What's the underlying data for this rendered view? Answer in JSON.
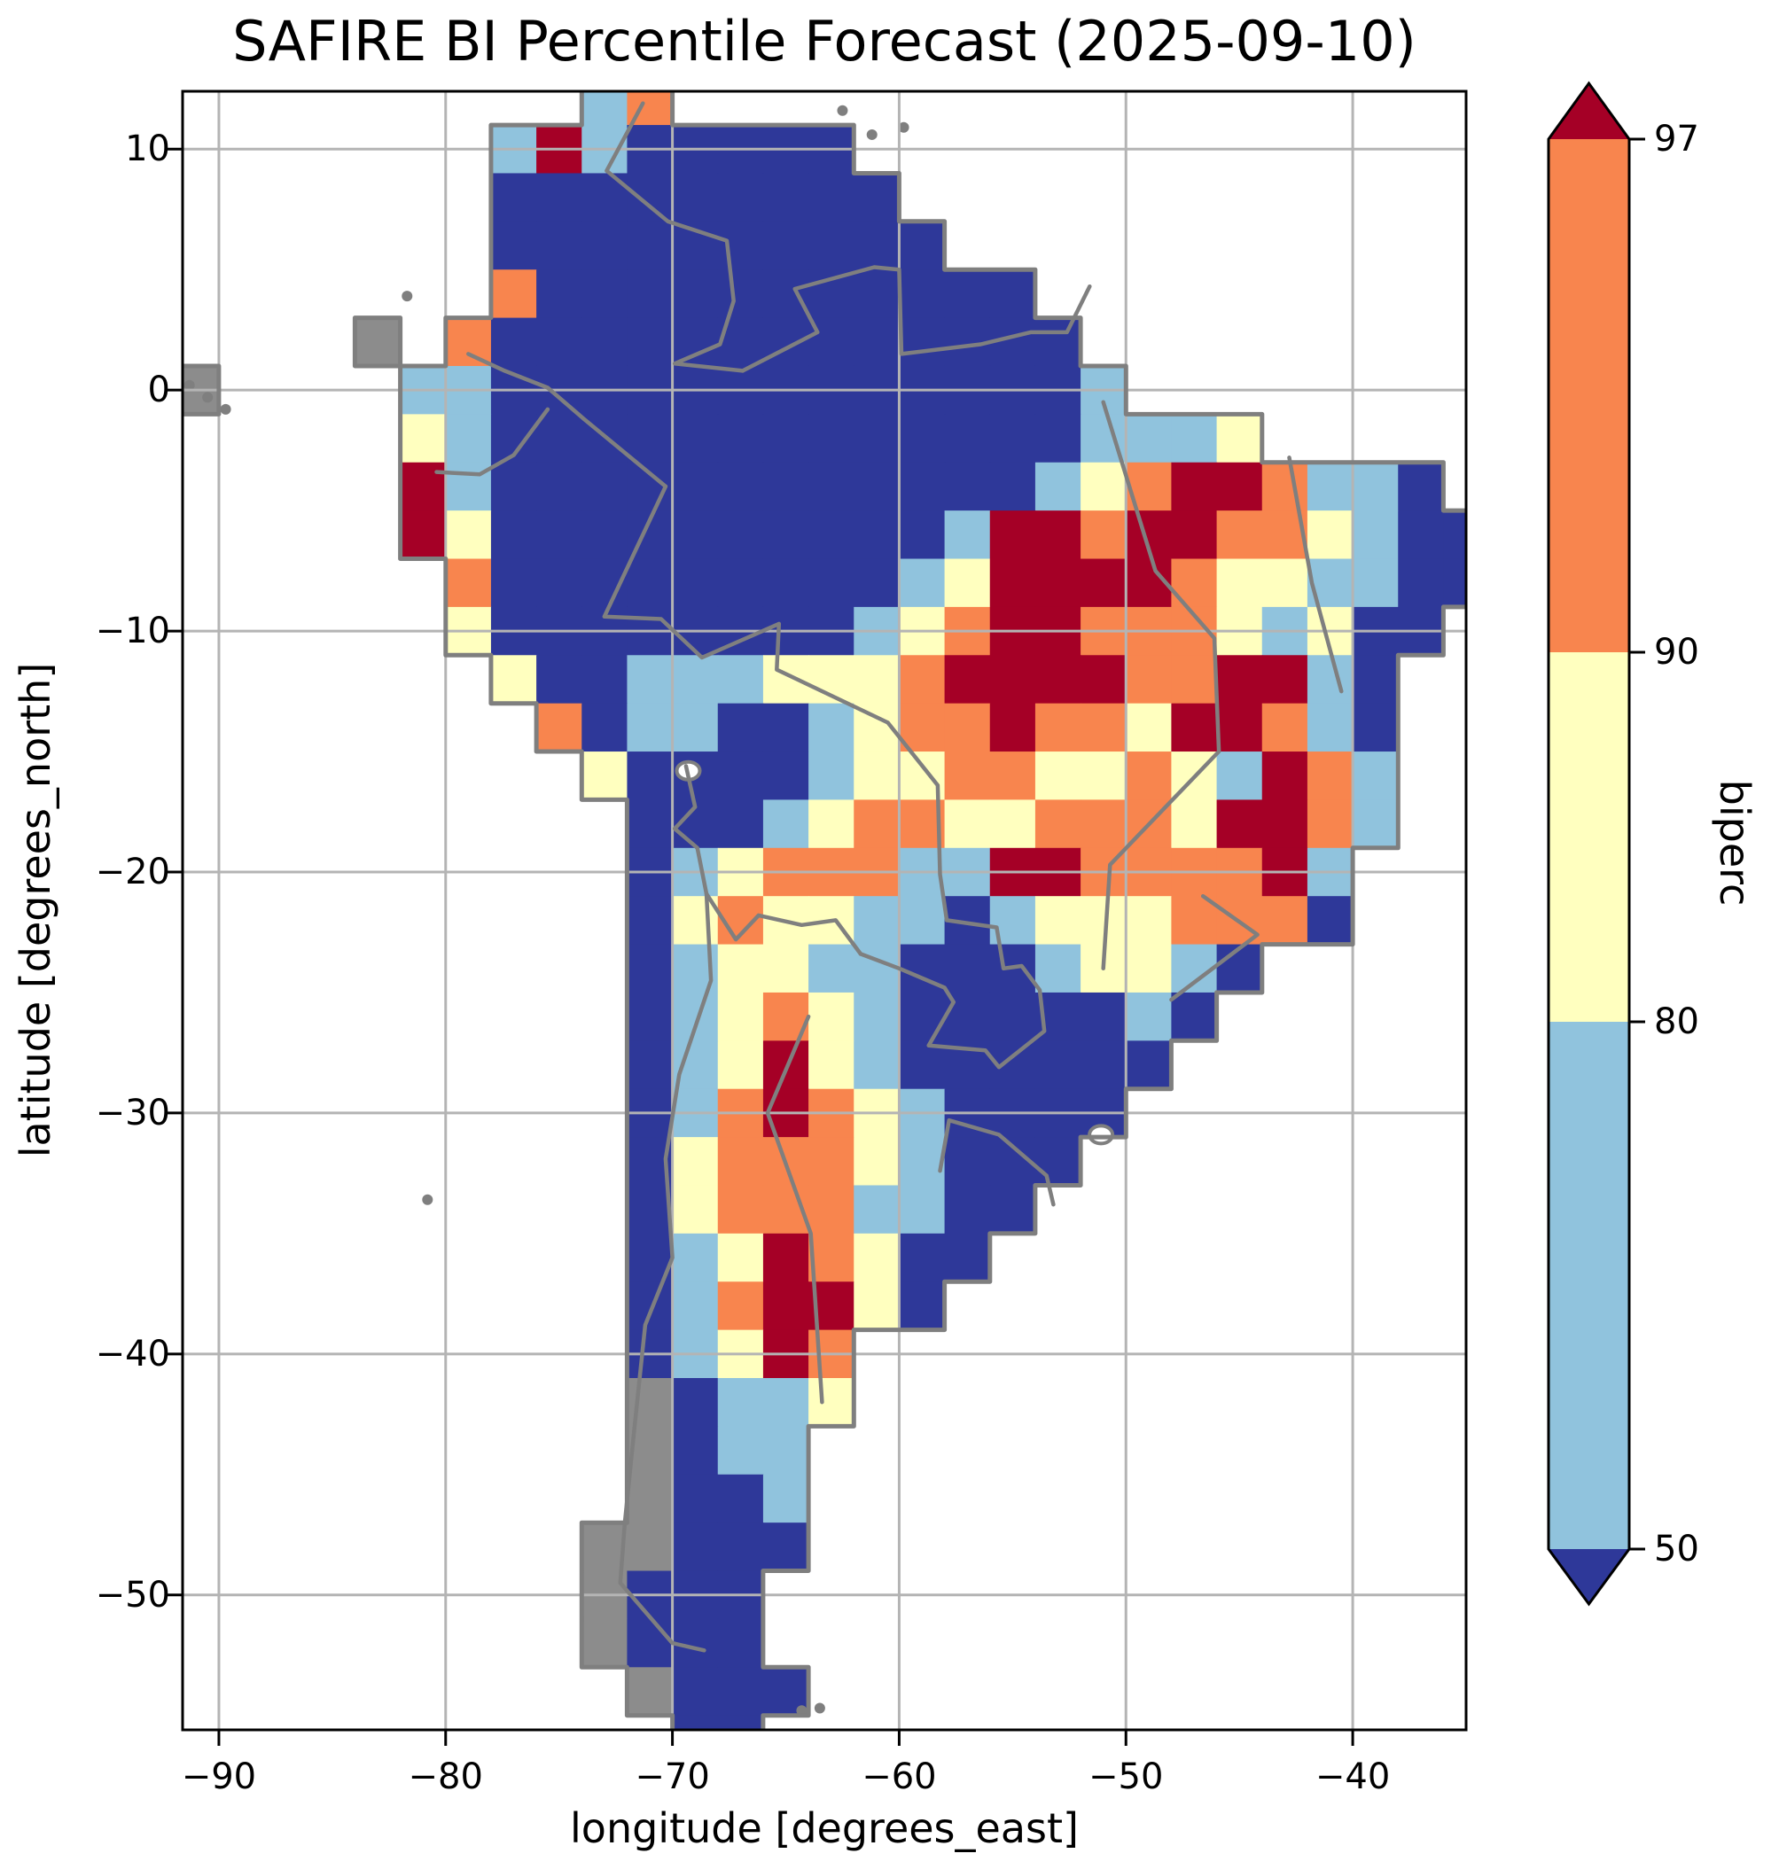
{
  "title": "SAFIRE BI Percentile Forecast (2025-09-10)",
  "axes": {
    "xlabel": "longitude [degrees_east]",
    "ylabel": "latitude [degrees_north]"
  },
  "colorbar": {
    "label": "biperc",
    "tick_labels": [
      "97",
      "90",
      "80",
      "50"
    ],
    "extend": "both",
    "over_color": "#a50026",
    "under_color": "#2e3899",
    "segment_colors": [
      "#f8854e",
      "#ffffbf",
      "#90c3dd"
    ],
    "segment_ranges": [
      "90-97",
      "80-90",
      "50-80"
    ]
  },
  "colors": {
    "background": "#ffffff",
    "frame": "#000000",
    "gridline": "#b4b4b4",
    "boundary": "#7f7f7f",
    "text": "#000000"
  },
  "chart_data": {
    "type": "heatmap",
    "title": "SAFIRE BI Percentile Forecast (2025-09-10)",
    "xlabel": "longitude [degrees_east]",
    "ylabel": "latitude [degrees_north]",
    "xlim": [
      -91.6,
      -35.0
    ],
    "ylim": [
      -55.6,
      12.4
    ],
    "xticks": [
      -90,
      -80,
      -70,
      -60,
      -50,
      -40
    ],
    "yticks": [
      10,
      0,
      -10,
      -20,
      -30,
      -40,
      -50
    ],
    "grid_on": true,
    "legend_position": "colorbar-right",
    "value_classes": {
      "1": "biperc below 50",
      "2": "biperc 50-80",
      "3": "biperc 80-90",
      "4": "biperc 90-97",
      "5": "biperc above 97",
      "g": "coastal terrain / islands (no data)",
      ".": "ocean (no data)"
    },
    "class_colors": {
      "1": "#2e3899",
      "2": "#90c3dd",
      "3": "#ffffbf",
      "4": "#f8854e",
      "5": "#a50026",
      "g": "#8c8c8c"
    },
    "cell_size_deg": 2,
    "grid_origin": {
      "lon": -92,
      "lat": 13
    },
    "codes": [
      ".........24..................",
      ".......25211111..............",
      ".......111111111.............",
      ".......1111111111............",
      ".......411111111111..........",
      "....g.41111111111111.........",
      "g....2211111111111112........",
      ".....3211111111111112223.....",
      ".....52111111111111234554221.",
      ".....531111111111255455443211",
      "......41111111112355554332211",
      "......3111111112345544432311.",
      ".......31122233345555445521..",
      "........4122112344544355421..",
      ".........311112334433432542..",
      "..........11123443344435542..",
      "..........1234442255444452...",
      "..........1343322123334441...",
      "..........12332211123321.....",
      "..........1234321111121......",
      "..........123532111111.......",
      "..........12454321111........",
      "..........1344432111.........",
      "..........134442211..........",
      "..........12354311...........",
      "..........1245531............",
      "..........12354..............",
      "..........g1223..............",
      "..........g122...............",
      "..........g112...............",
      ".........gg111...............",
      ".........g111................",
      ".........g111................",
      "..........g111...............",
      "...........11................"
    ],
    "borders": [
      [
        [
          -71.3,
          11.9
        ],
        [
          -72.9,
          9.1
        ],
        [
          -70.2,
          7.0
        ],
        [
          -67.6,
          6.2
        ],
        [
          -67.3,
          3.7
        ],
        [
          -67.9,
          1.9
        ],
        [
          -69.9,
          1.1
        ],
        [
          -66.9,
          0.8
        ]
      ],
      [
        [
          -66.9,
          0.8
        ],
        [
          -63.6,
          2.4
        ],
        [
          -64.6,
          4.2
        ],
        [
          -61.1,
          5.1
        ],
        [
          -60.0,
          5.0
        ],
        [
          -59.9,
          1.5
        ],
        [
          -56.4,
          1.9
        ],
        [
          -54.2,
          2.4
        ],
        [
          -52.6,
          2.4
        ],
        [
          -51.6,
          4.3
        ]
      ],
      [
        [
          -79.0,
          1.5
        ],
        [
          -77.4,
          0.8
        ],
        [
          -75.5,
          0.1
        ],
        [
          -73.9,
          -1.2
        ],
        [
          -70.3,
          -4.0
        ]
      ],
      [
        [
          -80.4,
          -3.4
        ],
        [
          -78.5,
          -3.5
        ],
        [
          -77.0,
          -2.7
        ],
        [
          -75.5,
          -0.8
        ]
      ],
      [
        [
          -70.3,
          -4.0
        ],
        [
          -73.0,
          -9.4
        ],
        [
          -70.5,
          -9.5
        ],
        [
          -68.7,
          -11.1
        ],
        [
          -65.3,
          -9.7
        ],
        [
          -65.4,
          -11.6
        ],
        [
          -60.5,
          -13.8
        ],
        [
          -58.3,
          -16.4
        ],
        [
          -58.2,
          -20.1
        ],
        [
          -57.9,
          -22.0
        ]
      ],
      [
        [
          -69.4,
          -15.6
        ],
        [
          -69.0,
          -17.3
        ],
        [
          -69.9,
          -18.2
        ],
        [
          -68.9,
          -19.0
        ],
        [
          -68.5,
          -20.9
        ],
        [
          -67.2,
          -22.8
        ],
        [
          -66.2,
          -21.8
        ],
        [
          -64.3,
          -22.2
        ],
        [
          -62.8,
          -22.0
        ],
        [
          -61.7,
          -23.4
        ]
      ],
      [
        [
          -68.5,
          -20.9
        ],
        [
          -68.3,
          -24.5
        ],
        [
          -69.7,
          -28.4
        ],
        [
          -70.3,
          -31.9
        ],
        [
          -70.0,
          -36.0
        ],
        [
          -71.2,
          -38.8
        ],
        [
          -71.7,
          -43.3
        ],
        [
          -72.1,
          -47.0
        ],
        [
          -72.3,
          -49.5
        ],
        [
          -70.0,
          -52.0
        ],
        [
          -68.6,
          -52.3
        ]
      ],
      [
        [
          -61.7,
          -23.4
        ],
        [
          -60.0,
          -24.0
        ],
        [
          -58.0,
          -24.8
        ],
        [
          -57.6,
          -25.4
        ],
        [
          -58.7,
          -27.2
        ],
        [
          -56.2,
          -27.4
        ],
        [
          -55.6,
          -28.1
        ],
        [
          -53.6,
          -26.6
        ],
        [
          -53.8,
          -24.9
        ],
        [
          -54.6,
          -23.9
        ],
        [
          -55.4,
          -24.0
        ],
        [
          -55.7,
          -22.3
        ],
        [
          -57.9,
          -22.0
        ]
      ],
      [
        [
          -58.2,
          -32.4
        ],
        [
          -57.8,
          -30.3
        ],
        [
          -55.6,
          -30.9
        ],
        [
          -53.5,
          -32.6
        ],
        [
          -53.2,
          -33.8
        ]
      ],
      [
        [
          -51.0,
          -0.5
        ],
        [
          -48.7,
          -7.5
        ],
        [
          -46.1,
          -10.3
        ],
        [
          -45.9,
          -15.0
        ],
        [
          -50.7,
          -19.7
        ],
        [
          -51.0,
          -24.0
        ]
      ],
      [
        [
          -42.8,
          -2.8
        ],
        [
          -41.8,
          -8.0
        ],
        [
          -40.5,
          -12.5
        ]
      ],
      [
        [
          -46.6,
          -21.0
        ],
        [
          -44.2,
          -22.6
        ],
        [
          -48.0,
          -25.3
        ]
      ],
      [
        [
          -64.0,
          -26.0
        ],
        [
          -65.8,
          -30.0
        ],
        [
          -63.9,
          -35.0
        ],
        [
          -63.4,
          -42.0
        ]
      ]
    ],
    "islands": [
      [
        -91.3,
        0.2
      ],
      [
        -90.5,
        -0.3
      ],
      [
        -89.7,
        -0.8
      ],
      [
        -81.7,
        3.9
      ],
      [
        -80.8,
        -33.6
      ],
      [
        -64.3,
        -54.8
      ],
      [
        -63.5,
        -54.7
      ],
      [
        -62.5,
        11.6
      ],
      [
        -61.2,
        10.6
      ],
      [
        -59.8,
        10.9
      ]
    ],
    "lakes": [
      [
        -69.3,
        -15.8
      ],
      [
        -51.1,
        -30.9
      ]
    ]
  }
}
